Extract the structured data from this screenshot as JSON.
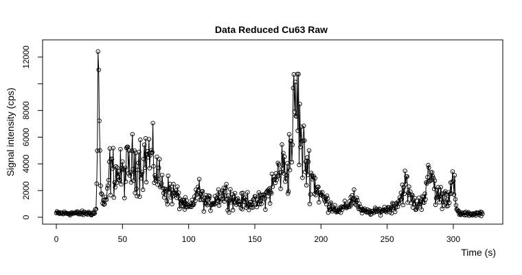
{
  "chart_data": {
    "type": "scatter",
    "title": "Data Reduced Cu63 Raw",
    "xlabel": "Time (s)",
    "ylabel": "Signal intensity (cps)",
    "xlim": [
      0,
      324
    ],
    "ylim": [
      -300,
      13000
    ],
    "x_ticks": [
      0,
      50,
      100,
      150,
      200,
      250,
      300
    ],
    "y_ticks": [
      0,
      2000,
      4000,
      6000,
      8000,
      10000,
      12000
    ],
    "y_tick_labels": [
      "0",
      "2000",
      "4000",
      "6000",
      "8000",
      "",
      "12000"
    ],
    "style": "points connected by thin lines, open circle markers",
    "grid": false,
    "x_step": 0.5,
    "series": [
      {
        "name": "",
        "profile_points": [
          [
            0,
            300
          ],
          [
            29,
            300
          ],
          [
            30,
            700
          ],
          [
            31,
            4000
          ],
          [
            31.5,
            12700
          ],
          [
            32,
            11400
          ],
          [
            32.5,
            7300
          ],
          [
            33,
            4100
          ],
          [
            34,
            1500
          ],
          [
            36,
            1000
          ],
          [
            38,
            1100
          ],
          [
            40,
            3500
          ],
          [
            45,
            3400
          ],
          [
            50,
            3100
          ],
          [
            55,
            3800
          ],
          [
            60,
            4100
          ],
          [
            65,
            4300
          ],
          [
            70,
            4600
          ],
          [
            75,
            3700
          ],
          [
            80,
            2400
          ],
          [
            85,
            2000
          ],
          [
            90,
            1700
          ],
          [
            95,
            1100
          ],
          [
            100,
            700
          ],
          [
            104,
            900
          ],
          [
            106,
            2300
          ],
          [
            110,
            1400
          ],
          [
            115,
            1000
          ],
          [
            120,
            1400
          ],
          [
            125,
            1800
          ],
          [
            130,
            1700
          ],
          [
            135,
            1300
          ],
          [
            140,
            1100
          ],
          [
            145,
            1300
          ],
          [
            150,
            1000
          ],
          [
            155,
            1300
          ],
          [
            160,
            1700
          ],
          [
            165,
            2700
          ],
          [
            170,
            3800
          ],
          [
            175,
            3500
          ],
          [
            178,
            6000
          ],
          [
            180,
            8000
          ],
          [
            182,
            8800
          ],
          [
            184,
            6500
          ],
          [
            186,
            4900
          ],
          [
            190,
            3800
          ],
          [
            195,
            2600
          ],
          [
            200,
            1600
          ],
          [
            205,
            1100
          ],
          [
            210,
            700
          ],
          [
            215,
            500
          ],
          [
            220,
            900
          ],
          [
            225,
            1600
          ],
          [
            230,
            500
          ],
          [
            235,
            400
          ],
          [
            240,
            400
          ],
          [
            245,
            500
          ],
          [
            250,
            600
          ],
          [
            255,
            800
          ],
          [
            260,
            1400
          ],
          [
            263,
            2600
          ],
          [
            267,
            1600
          ],
          [
            272,
            800
          ],
          [
            276,
            1300
          ],
          [
            280,
            2200
          ],
          [
            283,
            3400
          ],
          [
            287,
            1700
          ],
          [
            292,
            1500
          ],
          [
            297,
            1800
          ],
          [
            301,
            2500
          ],
          [
            302,
            600
          ],
          [
            305,
            250
          ],
          [
            315,
            250
          ],
          [
            322,
            300
          ]
        ]
      }
    ]
  }
}
